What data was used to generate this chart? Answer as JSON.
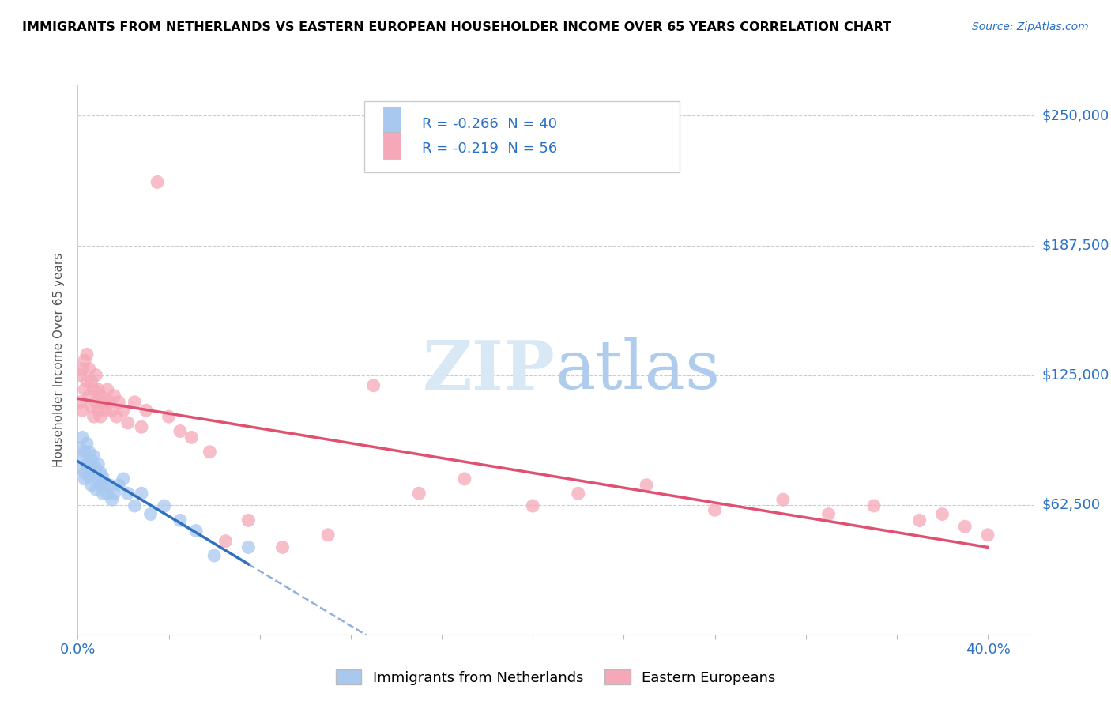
{
  "title": "IMMIGRANTS FROM NETHERLANDS VS EASTERN EUROPEAN HOUSEHOLDER INCOME OVER 65 YEARS CORRELATION CHART",
  "source": "Source: ZipAtlas.com",
  "ylabel": "Householder Income Over 65 years",
  "xlim": [
    0.0,
    0.42
  ],
  "ylim": [
    0,
    265000
  ],
  "ytick_positions": [
    62500,
    125000,
    187500,
    250000
  ],
  "ytick_labels": [
    "$62,500",
    "$125,000",
    "$187,500",
    "$250,000"
  ],
  "legend1_r": "-0.266",
  "legend1_n": "40",
  "legend2_r": "-0.219",
  "legend2_n": "56",
  "legend1_label": "Immigrants from Netherlands",
  "legend2_label": "Eastern Europeans",
  "blue_color": "#a8c8f0",
  "pink_color": "#f5a8b8",
  "blue_line_color": "#3070c0",
  "pink_line_color": "#e05070",
  "watermark_color": "#d8e8f5",
  "netherlands_x": [
    0.001,
    0.001,
    0.002,
    0.002,
    0.003,
    0.003,
    0.003,
    0.004,
    0.004,
    0.005,
    0.005,
    0.005,
    0.006,
    0.006,
    0.007,
    0.007,
    0.008,
    0.008,
    0.009,
    0.009,
    0.01,
    0.01,
    0.011,
    0.011,
    0.012,
    0.013,
    0.014,
    0.015,
    0.016,
    0.018,
    0.02,
    0.022,
    0.025,
    0.028,
    0.032,
    0.038,
    0.045,
    0.052,
    0.06,
    0.075
  ],
  "netherlands_y": [
    90000,
    80000,
    85000,
    95000,
    78000,
    88000,
    75000,
    82000,
    92000,
    80000,
    76000,
    88000,
    72000,
    84000,
    78000,
    86000,
    70000,
    80000,
    75000,
    82000,
    72000,
    78000,
    68000,
    76000,
    72000,
    68000,
    72000,
    65000,
    68000,
    72000,
    75000,
    68000,
    62000,
    68000,
    58000,
    62000,
    55000,
    50000,
    38000,
    42000
  ],
  "eastern_x": [
    0.001,
    0.001,
    0.002,
    0.002,
    0.003,
    0.003,
    0.004,
    0.004,
    0.005,
    0.005,
    0.006,
    0.006,
    0.007,
    0.007,
    0.008,
    0.008,
    0.009,
    0.009,
    0.01,
    0.01,
    0.011,
    0.012,
    0.013,
    0.014,
    0.015,
    0.016,
    0.017,
    0.018,
    0.02,
    0.022,
    0.025,
    0.028,
    0.03,
    0.035,
    0.04,
    0.045,
    0.05,
    0.058,
    0.065,
    0.075,
    0.09,
    0.11,
    0.13,
    0.15,
    0.17,
    0.2,
    0.22,
    0.25,
    0.28,
    0.31,
    0.33,
    0.35,
    0.37,
    0.38,
    0.39,
    0.4
  ],
  "eastern_y": [
    112000,
    125000,
    108000,
    128000,
    118000,
    132000,
    122000,
    135000,
    115000,
    128000,
    110000,
    122000,
    105000,
    118000,
    112000,
    125000,
    108000,
    118000,
    115000,
    105000,
    112000,
    108000,
    118000,
    112000,
    108000,
    115000,
    105000,
    112000,
    108000,
    102000,
    112000,
    100000,
    108000,
    218000,
    105000,
    98000,
    95000,
    88000,
    45000,
    55000,
    42000,
    48000,
    120000,
    68000,
    75000,
    62000,
    68000,
    72000,
    60000,
    65000,
    58000,
    62000,
    55000,
    58000,
    52000,
    48000
  ]
}
